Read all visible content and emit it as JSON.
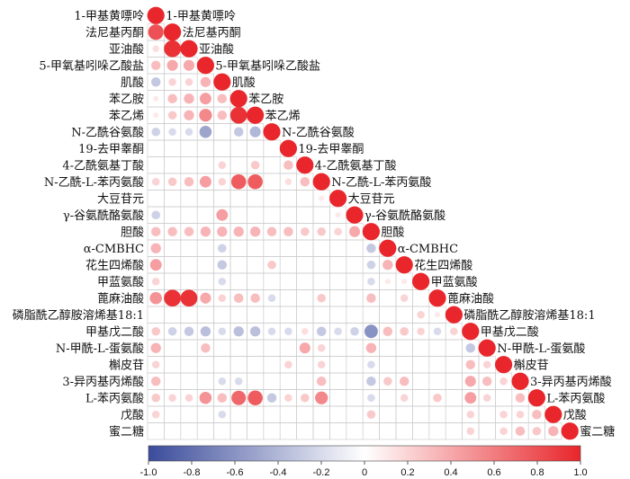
{
  "chart_data": {
    "type": "heatmap",
    "subtype": "lower-triangle correlation matrix (circles, diagonal labels)",
    "variables": [
      "1-甲基黄嘌呤",
      "法尼基丙酮",
      "亚油酸",
      "5-甲氧基吲哚乙酸盐",
      "肌酸",
      "苯乙胺",
      "苯乙烯",
      "N-乙酰谷氨酸",
      "19-去甲睾酮",
      "4-乙酰氨基丁酸",
      "N-乙酰-L-苯丙氨酸",
      "大豆苷元",
      "γ-谷氨酰酪氨酸",
      "胆酸",
      "α-CMBHC",
      "花生四烯酸",
      "甲蓝氨酸",
      "蓖麻油酸",
      "磷脂酰乙醇胺溶烯基18:1",
      "甲基戊二酸",
      "N-甲酰-L-蛋氨酸",
      "槲皮苷",
      "3-异丙基丙烯酸",
      "L-苯丙氨酸",
      "戊酸",
      "蜜二糖"
    ],
    "correlations": [
      [
        1
      ],
      [
        0.8,
        1
      ],
      [
        0.15,
        0.95,
        1
      ],
      [
        0.3,
        0.4,
        0.4,
        1
      ],
      [
        -0.3,
        0.2,
        0.2,
        0.35,
        1
      ],
      [
        0.1,
        0.3,
        0.35,
        0.45,
        0.3,
        1
      ],
      [
        0.1,
        0.25,
        0.35,
        0.55,
        0.3,
        0.95,
        1
      ],
      [
        -0.25,
        -0.2,
        -0.2,
        -0.5,
        0,
        -0.3,
        -0.4,
        1
      ],
      [
        0,
        0,
        0,
        0,
        0,
        0,
        0,
        0,
        1
      ],
      [
        0,
        0,
        0,
        0,
        0.2,
        0,
        0.25,
        0,
        0.3,
        1
      ],
      [
        0.2,
        0.25,
        0.3,
        0.45,
        0.2,
        0.75,
        0.75,
        0,
        0.15,
        0.3,
        1
      ],
      [
        0,
        0,
        0,
        0,
        0,
        0,
        0,
        0,
        0,
        0,
        0.1,
        1
      ],
      [
        -0.25,
        0,
        0,
        0,
        0.45,
        0,
        0,
        0,
        0,
        0,
        0,
        0.1,
        1
      ],
      [
        0.3,
        0.3,
        0.3,
        0.35,
        0.35,
        0.35,
        0.35,
        0.3,
        0.3,
        0.25,
        0.25,
        0.2,
        0.4,
        1
      ],
      [
        0.35,
        0,
        0,
        0,
        -0.25,
        0,
        0,
        0,
        0,
        0,
        0,
        0,
        0,
        -0.3,
        1
      ],
      [
        0.45,
        0,
        0,
        0,
        -0.3,
        0,
        0,
        0.25,
        0,
        0,
        0,
        0,
        0,
        -0.25,
        0.35,
        1
      ],
      [
        0.2,
        0,
        0,
        0,
        -0.2,
        0,
        0,
        0,
        0,
        0,
        0,
        0,
        0,
        -0.2,
        0.1,
        0.1,
        1
      ],
      [
        0.5,
        0.95,
        0.95,
        0.4,
        0.2,
        0.3,
        0.3,
        -0.2,
        0,
        0,
        0.25,
        0,
        0,
        0.3,
        0,
        0.2,
        0,
        1
      ],
      [
        0,
        0,
        0,
        0,
        0,
        0,
        0,
        0,
        0,
        0,
        0,
        0,
        0,
        0,
        0,
        0,
        0.2,
        0.1,
        1
      ],
      [
        0.25,
        -0.25,
        -0.3,
        -0.35,
        -0.2,
        -0.35,
        -0.35,
        -0.2,
        -0.2,
        0.15,
        -0.3,
        -0.2,
        -0.25,
        -0.6,
        0.3,
        0.25,
        0.2,
        -0.2,
        0.2,
        1
      ],
      [
        0.35,
        0,
        0,
        0.3,
        0,
        0,
        0,
        0,
        0,
        0.4,
        0.2,
        0,
        0,
        0.35,
        0,
        0,
        0,
        0,
        0,
        -0.3,
        1
      ],
      [
        0.2,
        0,
        0,
        0,
        0,
        0,
        0,
        0,
        0.2,
        0,
        0.2,
        0,
        0,
        -0.2,
        0,
        0,
        0,
        0,
        0,
        0.3,
        0.2,
        1
      ],
      [
        0.3,
        0,
        0,
        0,
        -0.2,
        -0.2,
        0,
        0,
        0,
        0,
        0.3,
        0,
        0,
        -0.3,
        0.25,
        0.3,
        0,
        0,
        0,
        0.4,
        0.3,
        0.2,
        1
      ],
      [
        0.25,
        0.2,
        0.2,
        0.5,
        0.3,
        0.7,
        0.75,
        -0.3,
        0.2,
        0.25,
        0.55,
        0,
        0,
        -0.2,
        0,
        0.2,
        0,
        0.25,
        0,
        0.45,
        0.2,
        0,
        0.3,
        1
      ],
      [
        0.2,
        0,
        0,
        0,
        -0.2,
        0,
        0,
        0,
        0,
        0,
        0,
        0,
        0,
        0.25,
        0,
        0,
        0,
        0,
        0,
        0.2,
        0,
        0.2,
        0.2,
        0.3,
        1
      ],
      [
        0,
        0,
        0,
        0,
        0,
        0,
        0,
        0,
        0,
        0,
        0,
        0,
        0,
        0,
        0,
        0,
        0,
        0,
        0,
        0.2,
        0,
        0.2,
        0.3,
        0.25,
        0.35,
        1
      ]
    ],
    "colorbar": {
      "range": [
        -1.0,
        1.0
      ],
      "ticks": [
        "-1.0",
        "-0.8",
        "-0.6",
        "-0.4",
        "-0.2",
        "0",
        "0.2",
        "0.4",
        "0.6",
        "0.8",
        "1.0"
      ],
      "colors": {
        "negative": "#3b4b9b",
        "zero": "#ffffff",
        "positive": "#e8262b"
      }
    },
    "grid": true,
    "legend_position": "bottom"
  }
}
